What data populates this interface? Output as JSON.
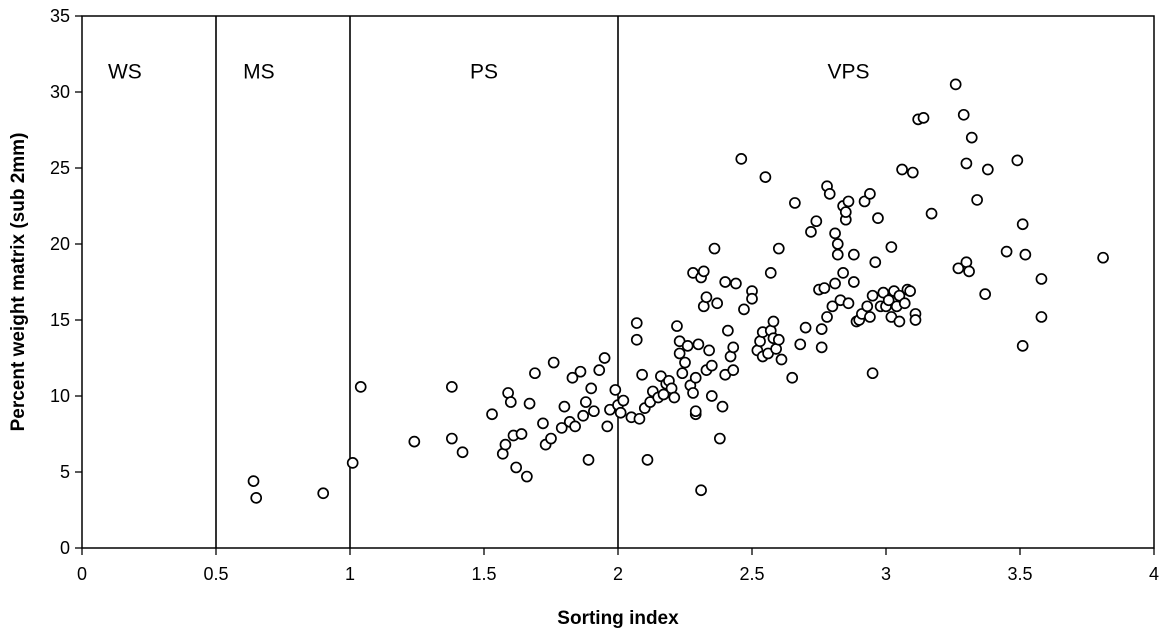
{
  "chart_data": {
    "type": "scatter",
    "title": "",
    "xlabel": "Sorting index",
    "ylabel": "Percent weight matrix (sub 2mm)",
    "xlim": [
      0,
      4
    ],
    "ylim": [
      0,
      35
    ],
    "xticks": [
      "0",
      "0.5",
      "1",
      "1.5",
      "2",
      "2.5",
      "3",
      "3.5",
      "4"
    ],
    "yticks": [
      "0",
      "5",
      "10",
      "15",
      "20",
      "25",
      "30",
      "35"
    ],
    "grid": false,
    "legend": "none",
    "marker_color": "#000000",
    "regions": [
      {
        "label": "WS",
        "x_from": 0,
        "x_to": 0.5
      },
      {
        "label": "MS",
        "x_from": 0.5,
        "x_to": 1.0
      },
      {
        "label": "PS",
        "x_from": 1.0,
        "x_to": 2.0
      },
      {
        "label": "VPS",
        "x_from": 2.0,
        "x_to": 4.0
      }
    ],
    "dividers": [
      0.5,
      1.0,
      2.0
    ],
    "series": [
      {
        "points": [
          [
            0.64,
            4.4
          ],
          [
            0.65,
            3.3
          ],
          [
            0.9,
            3.6
          ],
          [
            1.01,
            5.6
          ],
          [
            1.04,
            10.6
          ],
          [
            1.24,
            7.0
          ],
          [
            1.38,
            7.2
          ],
          [
            1.38,
            10.6
          ],
          [
            1.42,
            6.3
          ],
          [
            1.53,
            8.8
          ],
          [
            1.57,
            6.2
          ],
          [
            1.58,
            6.8
          ],
          [
            1.59,
            10.2
          ],
          [
            1.6,
            9.6
          ],
          [
            1.61,
            7.4
          ],
          [
            1.62,
            5.3
          ],
          [
            1.64,
            7.5
          ],
          [
            1.66,
            4.7
          ],
          [
            1.67,
            9.5
          ],
          [
            1.69,
            11.5
          ],
          [
            1.72,
            8.2
          ],
          [
            1.73,
            6.8
          ],
          [
            1.75,
            7.2
          ],
          [
            1.76,
            12.2
          ],
          [
            1.79,
            7.9
          ],
          [
            1.8,
            9.3
          ],
          [
            1.82,
            8.3
          ],
          [
            1.83,
            11.2
          ],
          [
            1.84,
            8.0
          ],
          [
            1.86,
            11.6
          ],
          [
            1.87,
            8.7
          ],
          [
            1.88,
            9.6
          ],
          [
            1.89,
            5.8
          ],
          [
            1.9,
            10.5
          ],
          [
            1.91,
            9.0
          ],
          [
            1.93,
            11.7
          ],
          [
            1.95,
            12.5
          ],
          [
            1.96,
            8.0
          ],
          [
            1.97,
            9.1
          ],
          [
            1.99,
            10.4
          ],
          [
            2.0,
            9.4
          ],
          [
            2.01,
            8.9
          ],
          [
            2.02,
            9.7
          ],
          [
            2.05,
            8.6
          ],
          [
            2.07,
            14.8
          ],
          [
            2.07,
            13.7
          ],
          [
            2.08,
            8.5
          ],
          [
            2.09,
            11.4
          ],
          [
            2.1,
            9.2
          ],
          [
            2.11,
            5.8
          ],
          [
            2.12,
            9.6
          ],
          [
            2.13,
            10.3
          ],
          [
            2.15,
            9.9
          ],
          [
            2.16,
            11.3
          ],
          [
            2.17,
            10.1
          ],
          [
            2.18,
            10.8
          ],
          [
            2.19,
            11.0
          ],
          [
            2.2,
            10.5
          ],
          [
            2.21,
            9.9
          ],
          [
            2.22,
            14.6
          ],
          [
            2.23,
            13.6
          ],
          [
            2.23,
            12.8
          ],
          [
            2.24,
            11.5
          ],
          [
            2.25,
            12.2
          ],
          [
            2.26,
            13.3
          ],
          [
            2.27,
            10.7
          ],
          [
            2.28,
            18.1
          ],
          [
            2.28,
            10.2
          ],
          [
            2.29,
            8.8
          ],
          [
            2.29,
            9.0
          ],
          [
            2.29,
            11.2
          ],
          [
            2.3,
            13.4
          ],
          [
            2.31,
            3.8
          ],
          [
            2.31,
            17.8
          ],
          [
            2.32,
            18.2
          ],
          [
            2.32,
            15.9
          ],
          [
            2.33,
            16.5
          ],
          [
            2.33,
            11.7
          ],
          [
            2.34,
            13.0
          ],
          [
            2.35,
            12.0
          ],
          [
            2.35,
            10.0
          ],
          [
            2.36,
            19.7
          ],
          [
            2.37,
            16.1
          ],
          [
            2.38,
            7.2
          ],
          [
            2.39,
            9.3
          ],
          [
            2.4,
            11.4
          ],
          [
            2.4,
            17.5
          ],
          [
            2.41,
            14.3
          ],
          [
            2.42,
            12.6
          ],
          [
            2.43,
            13.2
          ],
          [
            2.43,
            11.7
          ],
          [
            2.44,
            17.4
          ],
          [
            2.46,
            25.6
          ],
          [
            2.47,
            15.7
          ],
          [
            2.5,
            16.9
          ],
          [
            2.5,
            16.4
          ],
          [
            2.52,
            13.0
          ],
          [
            2.53,
            13.6
          ],
          [
            2.54,
            14.2
          ],
          [
            2.54,
            12.6
          ],
          [
            2.55,
            24.4
          ],
          [
            2.56,
            12.8
          ],
          [
            2.57,
            14.3
          ],
          [
            2.57,
            18.1
          ],
          [
            2.58,
            13.8
          ],
          [
            2.58,
            14.9
          ],
          [
            2.59,
            13.1
          ],
          [
            2.6,
            13.7
          ],
          [
            2.6,
            19.7
          ],
          [
            2.61,
            12.4
          ],
          [
            2.65,
            11.2
          ],
          [
            2.66,
            22.7
          ],
          [
            2.68,
            13.4
          ],
          [
            2.7,
            14.5
          ],
          [
            2.72,
            20.8
          ],
          [
            2.74,
            21.5
          ],
          [
            2.75,
            17.0
          ],
          [
            2.76,
            13.2
          ],
          [
            2.76,
            14.4
          ],
          [
            2.77,
            17.1
          ],
          [
            2.78,
            23.8
          ],
          [
            2.78,
            15.2
          ],
          [
            2.79,
            23.3
          ],
          [
            2.8,
            15.9
          ],
          [
            2.81,
            20.7
          ],
          [
            2.81,
            17.4
          ],
          [
            2.82,
            20.0
          ],
          [
            2.82,
            19.3
          ],
          [
            2.83,
            16.3
          ],
          [
            2.84,
            22.5
          ],
          [
            2.84,
            18.1
          ],
          [
            2.85,
            21.6
          ],
          [
            2.85,
            22.1
          ],
          [
            2.86,
            22.8
          ],
          [
            2.86,
            16.1
          ],
          [
            2.88,
            17.5
          ],
          [
            2.88,
            19.3
          ],
          [
            2.89,
            14.9
          ],
          [
            2.9,
            15.0
          ],
          [
            2.91,
            15.4
          ],
          [
            2.92,
            22.8
          ],
          [
            2.93,
            15.9
          ],
          [
            2.94,
            15.2
          ],
          [
            2.94,
            23.3
          ],
          [
            2.95,
            11.5
          ],
          [
            2.95,
            16.6
          ],
          [
            2.96,
            18.8
          ],
          [
            2.97,
            21.7
          ],
          [
            2.98,
            15.9
          ],
          [
            2.99,
            16.8
          ],
          [
            3.0,
            15.9
          ],
          [
            3.01,
            16.3
          ],
          [
            3.02,
            15.2
          ],
          [
            3.02,
            19.8
          ],
          [
            3.03,
            16.9
          ],
          [
            3.04,
            15.9
          ],
          [
            3.05,
            14.9
          ],
          [
            3.05,
            16.6
          ],
          [
            3.06,
            24.9
          ],
          [
            3.07,
            16.1
          ],
          [
            3.08,
            17.0
          ],
          [
            3.09,
            16.9
          ],
          [
            3.1,
            24.7
          ],
          [
            3.11,
            15.4
          ],
          [
            3.11,
            15.0
          ],
          [
            3.12,
            28.2
          ],
          [
            3.14,
            28.3
          ],
          [
            3.17,
            22.0
          ],
          [
            3.26,
            30.5
          ],
          [
            3.27,
            18.4
          ],
          [
            3.29,
            28.5
          ],
          [
            3.3,
            18.8
          ],
          [
            3.3,
            25.3
          ],
          [
            3.31,
            18.2
          ],
          [
            3.32,
            27.0
          ],
          [
            3.34,
            22.9
          ],
          [
            3.37,
            16.7
          ],
          [
            3.38,
            24.9
          ],
          [
            3.45,
            19.5
          ],
          [
            3.49,
            25.5
          ],
          [
            3.51,
            21.3
          ],
          [
            3.51,
            13.3
          ],
          [
            3.52,
            19.3
          ],
          [
            3.58,
            15.2
          ],
          [
            3.58,
            17.7
          ],
          [
            3.81,
            19.1
          ]
        ]
      }
    ]
  }
}
